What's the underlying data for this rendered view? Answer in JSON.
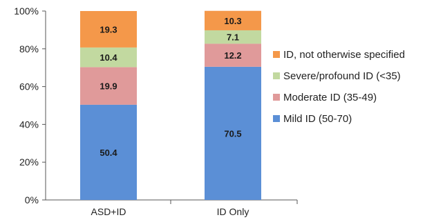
{
  "chart_data": {
    "type": "bar",
    "stacked": true,
    "categories": [
      "ASD+ID",
      "ID Only"
    ],
    "series": [
      {
        "name": "Mild ID (50-70)",
        "values": [
          50.4,
          70.5
        ],
        "color": "#5b8fd6"
      },
      {
        "name": "Moderate ID (35-49)",
        "values": [
          19.9,
          12.2
        ],
        "color": "#e09a9a"
      },
      {
        "name": "Severe/profound ID (<35)",
        "values": [
          10.4,
          7.1
        ],
        "color": "#c2d9a0"
      },
      {
        "name": "ID, not otherwise specified",
        "values": [
          19.3,
          10.3
        ],
        "color": "#f4984a"
      }
    ],
    "data_labels": [
      [
        "50.4",
        "19.9",
        "10.4",
        "19.3"
      ],
      [
        "70.5",
        "12.2",
        "7.1",
        "10.3"
      ]
    ],
    "yticks": [
      "0%",
      "20%",
      "40%",
      "60%",
      "80%",
      "100%"
    ],
    "ylim": [
      0,
      100
    ],
    "legend_position": "right",
    "legend_order": [
      "ID, not otherwise specified",
      "Severe/profound ID (<35)",
      "Moderate ID (35-49)",
      "Mild ID (50-70)"
    ],
    "grid": false
  }
}
